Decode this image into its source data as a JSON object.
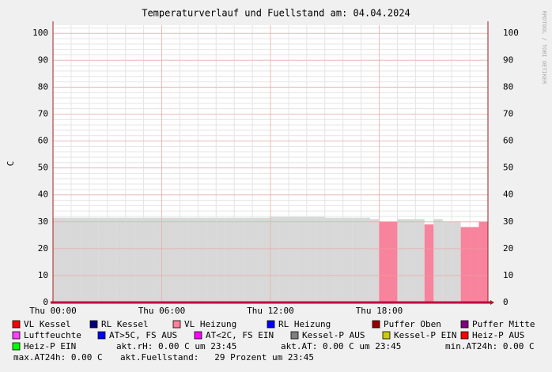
{
  "chart_data": {
    "type": "step-area",
    "title": "Temperaturverlauf und Fuellstand am: 04.04.2024",
    "y_label": "C",
    "watermark": "RRDTOOL / TOBI OETIKER",
    "x": [
      0,
      0.5,
      1,
      1.5,
      2,
      2.5,
      3,
      3.5,
      4,
      4.5,
      5,
      5.5,
      6,
      6.5,
      7,
      7.5,
      8,
      8.5,
      9,
      9.5,
      10,
      10.5,
      11,
      11.5,
      12,
      12.5,
      13,
      13.5,
      14,
      14.5,
      15,
      15.5,
      16,
      16.5,
      17,
      17.5,
      18,
      18.5,
      19,
      19.5,
      20,
      20.5,
      21,
      21.5,
      22,
      22.5,
      23,
      23.5
    ],
    "series": [
      {
        "name": "Kessel-P AUS",
        "color": "#d8d8d8",
        "values": [
          31.5,
          31.5,
          31.5,
          31.5,
          31.5,
          31.5,
          31.5,
          31.5,
          31.5,
          31.5,
          31.5,
          31.5,
          31.5,
          31.5,
          31.5,
          31.5,
          31.5,
          31.5,
          31.5,
          31.5,
          31.5,
          31.5,
          31.5,
          31.5,
          31.8,
          31.8,
          31.8,
          31.8,
          31.8,
          31.8,
          31.5,
          31.5,
          31.5,
          31.5,
          31.5,
          31,
          null,
          null,
          31,
          31,
          31,
          null,
          31,
          30,
          30,
          null,
          null,
          null
        ]
      },
      {
        "name": "VL Heizung",
        "color": "#f7839c",
        "values": [
          null,
          null,
          null,
          null,
          null,
          null,
          null,
          null,
          null,
          null,
          null,
          null,
          null,
          null,
          null,
          null,
          null,
          null,
          null,
          null,
          null,
          null,
          null,
          null,
          null,
          null,
          null,
          null,
          null,
          null,
          null,
          null,
          null,
          null,
          null,
          null,
          30,
          30,
          null,
          null,
          null,
          29,
          null,
          null,
          null,
          28,
          28,
          30
        ]
      }
    ],
    "xlim": [
      0,
      24
    ],
    "xticks": [
      {
        "value": 0,
        "label": "Thu 00:00"
      },
      {
        "value": 6,
        "label": "Thu 06:00"
      },
      {
        "value": 12,
        "label": "Thu 12:00"
      },
      {
        "value": 18,
        "label": "Thu 18:00"
      }
    ],
    "ylim": [
      0,
      103
    ],
    "yticks": [
      0,
      10,
      20,
      30,
      40,
      50,
      60,
      70,
      80,
      90,
      100
    ],
    "grid": true,
    "legend": [
      {
        "name": "VL Kessel",
        "color": "#ff0000"
      },
      {
        "name": "RL Kessel",
        "color": "#000080"
      },
      {
        "name": "VL Heizung",
        "color": "#ff8099"
      },
      {
        "name": "RL Heizung",
        "color": "#0000ff"
      },
      {
        "name": "Puffer Oben",
        "color": "#990000"
      },
      {
        "name": "Puffer Mitte",
        "color": "#800080"
      },
      {
        "name": "Luftfeuchte",
        "color": "#ff40ff"
      },
      {
        "name": "AT>5C, FS AUS",
        "color": "#0000ff"
      },
      {
        "name": "AT<2C, FS EIN",
        "color": "#ff00ff"
      },
      {
        "name": "Kessel-P AUS",
        "color": "#808080"
      },
      {
        "name": "Kessel-P EIN",
        "color": "#cccc00"
      },
      {
        "name": "Heiz-P AUS",
        "color": "#ff0000"
      },
      {
        "name": "Heiz-P EIN",
        "color": "#00ff00"
      }
    ],
    "notes": [
      "akt.rH: 0.00 C um 23:45",
      "akt.AT: 0.00 C um 23:45",
      "min.AT24h: 0.00 C",
      "max.AT24h: 0.00 C",
      "akt.Fuellstand:   29 Prozent um 23:45"
    ]
  }
}
